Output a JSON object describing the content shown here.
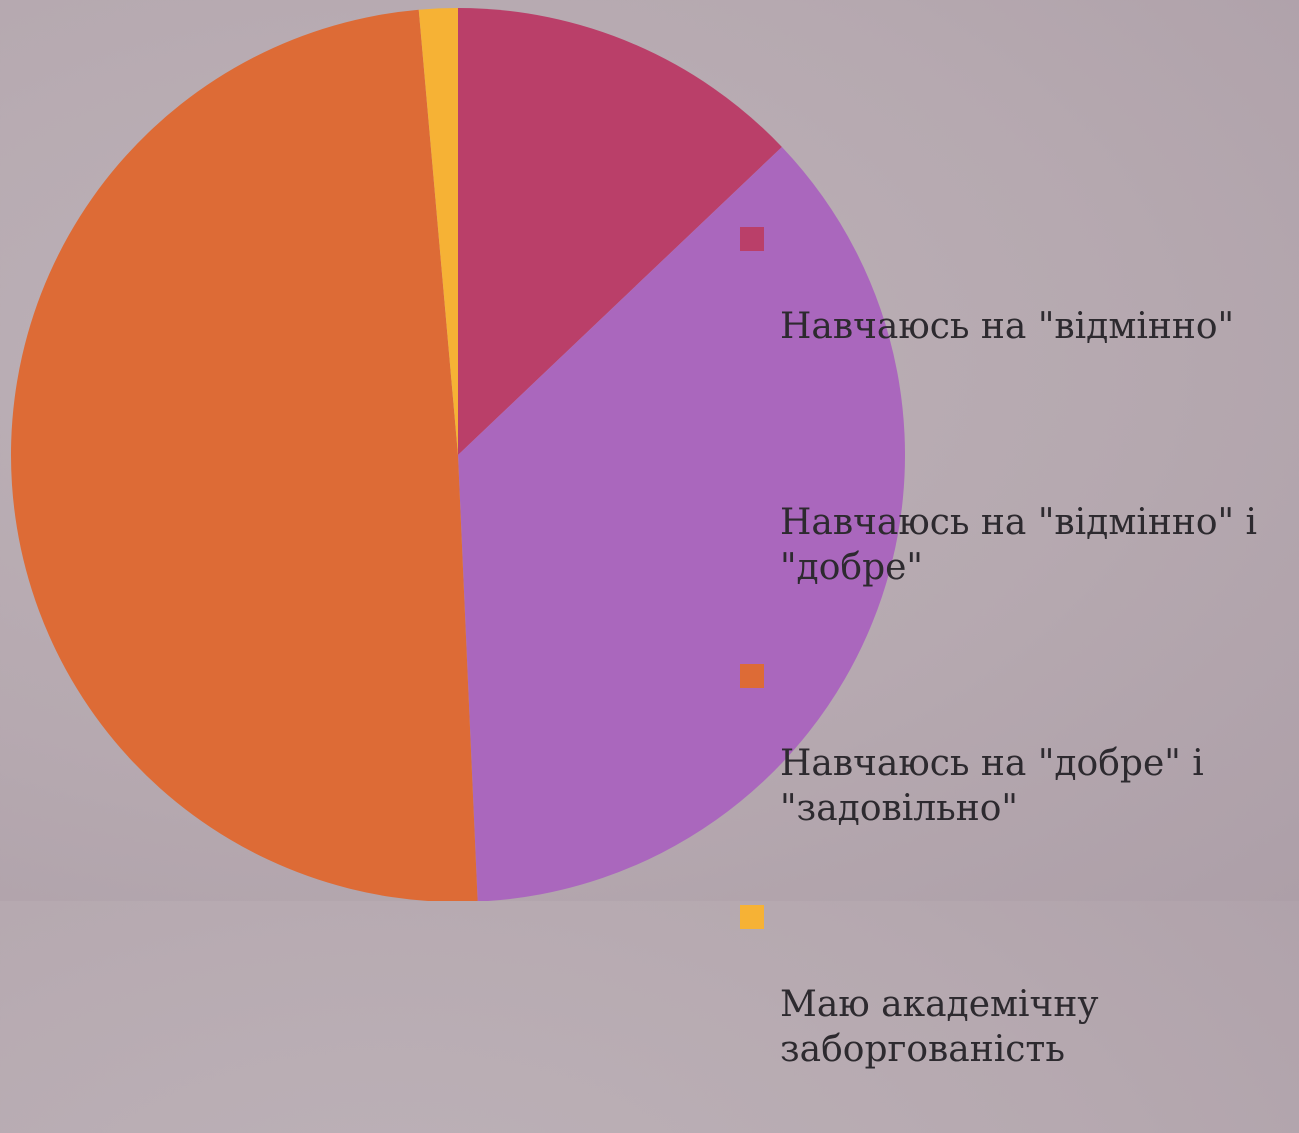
{
  "chart_data": {
    "type": "pie",
    "title": "",
    "categories": [
      "Навчаюсь на \"відмінно\"",
      "Навчаюсь на \"відмінно\" і \"добре\"",
      "Навчаюсь на \"добре\" і \"задовільно\"",
      "Маю академічну заборгованість"
    ],
    "values": [
      12.9,
      36.4,
      49.3,
      1.4
    ],
    "colors": [
      "#ba3f69",
      "#aa67bd",
      "#dd6b36",
      "#f6b235"
    ],
    "legend_position": "right",
    "legend_swatch_visible": [
      true,
      false,
      true,
      true
    ]
  }
}
